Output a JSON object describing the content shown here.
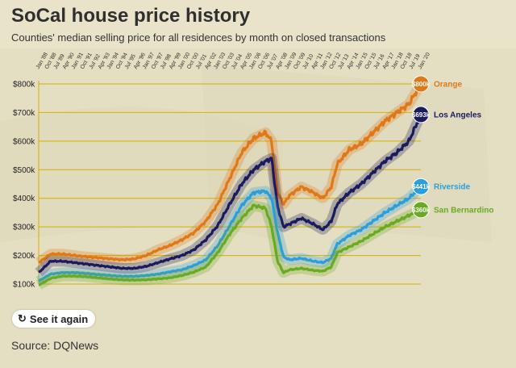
{
  "title": "SoCal house price history",
  "subtitle": "Counties' median selling price for all residences by month on closed transactions",
  "replay_label": "See it again",
  "replay_icon": "refresh-icon",
  "source": "Source: DQNews",
  "colors": {
    "background": "#e8e3c9",
    "grid": "#d4b000"
  },
  "chart_data": {
    "type": "line",
    "title": "SoCal house price history",
    "ylabel": "",
    "xlabel": "",
    "ylim": [
      100,
      800
    ],
    "y_unit": "thousands of dollars",
    "yticks": [
      100,
      200,
      300,
      400,
      500,
      600,
      700,
      800
    ],
    "ytick_labels": [
      "$100k",
      "$200k",
      "$300k",
      "$400k",
      "$500k",
      "$600k",
      "$700k",
      "$800k"
    ],
    "grid": true,
    "legend": "line-end labels on the right",
    "x_range": [
      "Jan '88",
      "Jan '20"
    ],
    "xtick_labels": [
      "Jan '88",
      "Oct '88",
      "Jul '89",
      "Apr '90",
      "Jan '91",
      "Oct '91",
      "Jul '92",
      "Apr '93",
      "Jan '94",
      "Oct '94",
      "Jul '95",
      "Apr '96",
      "Jan '97",
      "Oct '97",
      "Jul '98",
      "Apr '99",
      "Jan '00",
      "Oct '00",
      "Jul '01",
      "Apr '02",
      "Jan '03",
      "Oct '03",
      "Jul '04",
      "Apr '05",
      "Jan '06",
      "Oct '06",
      "Jul '07",
      "Apr '08",
      "Jan '09",
      "Oct '09",
      "Jul '10",
      "Apr '11",
      "Jan '12",
      "Oct '12",
      "Jul '13",
      "Apr '14",
      "Jan '15",
      "Oct '15",
      "Jul '16",
      "Apr '17",
      "Jan '18",
      "Oct '18",
      "Jul '19",
      "Jan '20"
    ],
    "series": [
      {
        "name": "Orange",
        "color": "#e07818",
        "end_label": "$800k",
        "years": [
          1988,
          1989,
          1990,
          1991,
          1992,
          1993,
          1994,
          1995,
          1996,
          1997,
          1998,
          1999,
          2000,
          2001,
          2002,
          2003,
          2004,
          2005,
          2006,
          2007,
          2007.5,
          2008,
          2008.5,
          2009,
          2010,
          2011,
          2011.8,
          2012.5,
          2013,
          2014,
          2015,
          2016,
          2017,
          2018,
          2019,
          2020
        ],
        "values": [
          175,
          205,
          205,
          200,
          195,
          192,
          188,
          185,
          188,
          200,
          220,
          235,
          255,
          280,
          320,
          380,
          470,
          560,
          610,
          630,
          600,
          420,
          380,
          410,
          440,
          420,
          400,
          440,
          520,
          570,
          590,
          630,
          670,
          700,
          730,
          800
        ]
      },
      {
        "name": "Los Angeles",
        "color": "#1a1a5e",
        "end_label": "$693k",
        "years": [
          1988,
          1989,
          1990,
          1991,
          1992,
          1993,
          1994,
          1995,
          1996,
          1997,
          1998,
          1999,
          2000,
          2001,
          2002,
          2003,
          2004,
          2005,
          2006,
          2007,
          2007.5,
          2008,
          2008.5,
          2009,
          2010,
          2011,
          2011.8,
          2012.5,
          2013,
          2014,
          2015,
          2016,
          2017,
          2018,
          2019,
          2020
        ],
        "values": [
          140,
          180,
          180,
          175,
          170,
          165,
          160,
          155,
          155,
          162,
          175,
          188,
          200,
          220,
          255,
          305,
          380,
          450,
          500,
          530,
          540,
          370,
          300,
          310,
          330,
          310,
          290,
          320,
          380,
          420,
          450,
          490,
          530,
          560,
          600,
          693
        ]
      },
      {
        "name": "Riverside",
        "color": "#2a9fdb",
        "end_label": "$441k",
        "years": [
          1988,
          1989,
          1990,
          1991,
          1992,
          1993,
          1994,
          1995,
          1996,
          1997,
          1998,
          1999,
          2000,
          2001,
          2002,
          2003,
          2004,
          2005,
          2006,
          2007,
          2007.5,
          2008,
          2008.5,
          2009,
          2010,
          2011,
          2011.8,
          2012.5,
          2013,
          2014,
          2015,
          2016,
          2017,
          2018,
          2019,
          2020
        ],
        "values": [
          110,
          135,
          140,
          140,
          137,
          133,
          130,
          127,
          127,
          130,
          135,
          143,
          150,
          165,
          185,
          235,
          305,
          375,
          420,
          425,
          400,
          280,
          195,
          185,
          190,
          180,
          175,
          190,
          240,
          270,
          290,
          320,
          350,
          375,
          400,
          441
        ]
      },
      {
        "name": "San Bernardino",
        "color": "#6aaa22",
        "end_label": "$360k",
        "years": [
          1988,
          1989,
          1990,
          1991,
          1992,
          1993,
          1994,
          1995,
          1996,
          1997,
          1998,
          1999,
          2000,
          2001,
          2002,
          2003,
          2004,
          2005,
          2006,
          2007,
          2007.5,
          2008,
          2008.5,
          2009,
          2010,
          2011,
          2011.8,
          2012.5,
          2013,
          2014,
          2015,
          2016,
          2017,
          2018,
          2019,
          2020
        ],
        "values": [
          97,
          120,
          128,
          128,
          126,
          122,
          118,
          115,
          114,
          115,
          118,
          122,
          130,
          142,
          160,
          210,
          275,
          330,
          375,
          365,
          300,
          180,
          140,
          150,
          155,
          148,
          145,
          160,
          210,
          230,
          250,
          275,
          300,
          320,
          340,
          360
        ]
      }
    ]
  }
}
